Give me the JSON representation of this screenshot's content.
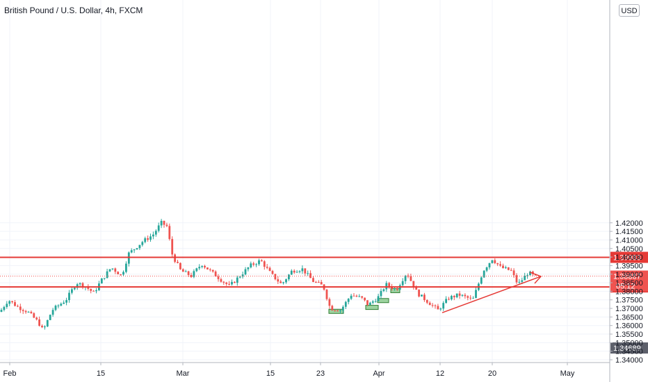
{
  "header": {
    "title": "British Pound / U.S. Dollar, 4h, FXCM",
    "currency": "USD"
  },
  "colors": {
    "up": "#26a69a",
    "down": "#ef5350",
    "level": "#e53935",
    "zone": "#4caf50",
    "grid": "#f0f3fa",
    "axis_text": "#131722",
    "last_price_bg": "#ef5350",
    "ref_price_bg": "#5d606b"
  },
  "chart_data": {
    "type": "candlestick",
    "title": "British Pound / U.S. Dollar, 4h, FXCM",
    "ylim": [
      1.3375,
      1.4235
    ],
    "y_ticks": [
      1.34,
      1.345,
      1.35,
      1.355,
      1.36,
      1.365,
      1.37,
      1.375,
      1.38,
      1.385,
      1.39,
      1.395,
      1.4,
      1.405,
      1.41,
      1.415,
      1.42
    ],
    "y_tick_labels": [
      "1.34000",
      "1.34500",
      "1.35000",
      "1.35500",
      "1.36000",
      "1.36500",
      "1.37000",
      "1.37500",
      "1.38000",
      "1.38500",
      "1.39000",
      "1.39500",
      "1.40000",
      "1.40500",
      "1.41000",
      "1.41500",
      "1.42000"
    ],
    "x_labels": [
      "Feb",
      "15",
      "Mar",
      "15",
      "23",
      "Apr",
      "12",
      "20",
      "May"
    ],
    "grid": true,
    "price_path": [
      [
        0,
        1.368
      ],
      [
        12,
        1.375
      ],
      [
        25,
        1.371
      ],
      [
        40,
        1.368
      ],
      [
        55,
        1.362
      ],
      [
        62,
        1.357
      ],
      [
        75,
        1.369
      ],
      [
        95,
        1.375
      ],
      [
        110,
        1.385
      ],
      [
        122,
        1.383
      ],
      [
        135,
        1.379
      ],
      [
        145,
        1.386
      ],
      [
        160,
        1.394
      ],
      [
        175,
        1.389
      ],
      [
        185,
        1.402
      ],
      [
        205,
        1.409
      ],
      [
        220,
        1.413
      ],
      [
        232,
        1.42
      ],
      [
        240,
        1.418
      ],
      [
        248,
        1.401
      ],
      [
        260,
        1.392
      ],
      [
        275,
        1.389
      ],
      [
        290,
        1.396
      ],
      [
        305,
        1.391
      ],
      [
        320,
        1.386
      ],
      [
        330,
        1.383
      ],
      [
        345,
        1.389
      ],
      [
        360,
        1.395
      ],
      [
        375,
        1.398
      ],
      [
        390,
        1.39
      ],
      [
        405,
        1.384
      ],
      [
        420,
        1.392
      ],
      [
        435,
        1.393
      ],
      [
        450,
        1.386
      ],
      [
        465,
        1.383
      ],
      [
        475,
        1.37
      ],
      [
        490,
        1.369
      ],
      [
        505,
        1.378
      ],
      [
        520,
        1.376
      ],
      [
        530,
        1.372
      ],
      [
        545,
        1.377
      ],
      [
        555,
        1.384
      ],
      [
        570,
        1.381
      ],
      [
        585,
        1.391
      ],
      [
        600,
        1.379
      ],
      [
        615,
        1.374
      ],
      [
        630,
        1.369
      ],
      [
        645,
        1.376
      ],
      [
        660,
        1.378
      ],
      [
        680,
        1.375
      ],
      [
        695,
        1.392
      ],
      [
        708,
        1.399
      ],
      [
        720,
        1.394
      ],
      [
        735,
        1.392
      ],
      [
        745,
        1.384
      ],
      [
        760,
        1.391
      ],
      [
        772,
        1.388
      ]
    ],
    "levels": [
      {
        "price": 1.39983,
        "label": "1.39983"
      },
      {
        "price": 1.38255,
        "label": "1.38255"
      }
    ],
    "last_price": {
      "price": 1.38887,
      "label": "1.38887",
      "countdown": "05:12"
    },
    "ref_price": {
      "price": 1.34689,
      "label": "1.34689"
    },
    "trendline": {
      "from": [
        "Apr 12",
        1.3675
      ],
      "to": [
        "Apr 26",
        1.3887
      ]
    },
    "demand_zones": [
      {
        "near": "Mar 24",
        "low": 1.3678,
        "high": 1.3695
      },
      {
        "near": "Mar 29",
        "low": 1.3708,
        "high": 1.3718
      },
      {
        "near": "Mar 31",
        "low": 1.3748,
        "high": 1.3758
      },
      {
        "near": "Apr 2",
        "low": 1.381,
        "high": 1.3816
      }
    ]
  }
}
